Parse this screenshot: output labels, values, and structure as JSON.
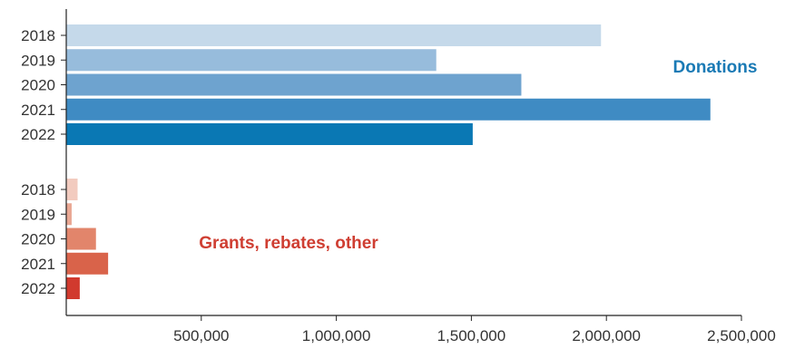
{
  "chart_data": {
    "type": "bar",
    "orientation": "horizontal",
    "title": "",
    "xlabel": "",
    "ylabel": "",
    "xlim": [
      0,
      2500000
    ],
    "x_ticks": [
      500000,
      1000000,
      1500000,
      2000000,
      2500000
    ],
    "x_tick_labels": [
      "500,000",
      "1,000,000",
      "1,500,000",
      "2,000,000",
      "2,500,000"
    ],
    "grid": false,
    "legend": "none",
    "groups": [
      {
        "name": "Donations",
        "label_color": "#1a7ab5",
        "categories": [
          "2018",
          "2019",
          "2020",
          "2021",
          "2022"
        ],
        "values": [
          1980000,
          1370000,
          1685000,
          2385000,
          1505000
        ],
        "colors": [
          "#c5d9ea",
          "#97bcdc",
          "#6ea3cf",
          "#3f8bc3",
          "#0a78b4"
        ]
      },
      {
        "name": "Grants, rebates, other",
        "label_color": "#cf3e32",
        "categories": [
          "2018",
          "2019",
          "2020",
          "2021",
          "2022"
        ],
        "values": [
          42000,
          20000,
          110000,
          155000,
          50000
        ],
        "colors": [
          "#f2cbbf",
          "#e9a793",
          "#e2856b",
          "#d9634a",
          "#d13a2e"
        ]
      }
    ]
  }
}
